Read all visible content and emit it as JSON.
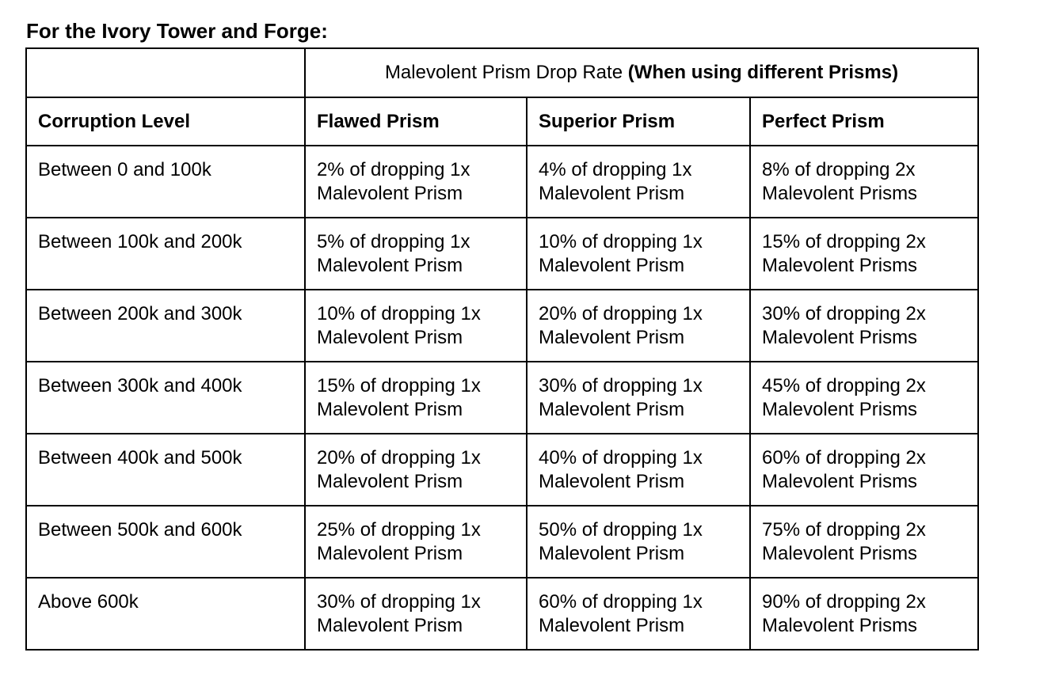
{
  "heading": "For the Ivory Tower and Forge:",
  "table": {
    "group_header": {
      "normal": "Malevolent Prism Drop Rate ",
      "bold": "(When using different Prisms)"
    },
    "columns": [
      "Corruption Level",
      "Flawed Prism",
      "Superior Prism",
      "Perfect Prism"
    ],
    "rows": [
      {
        "level": "Between 0 and 100k",
        "flawed": [
          "2% of dropping 1x",
          "Malevolent Prism"
        ],
        "superior": [
          "4% of dropping 1x",
          "Malevolent Prism"
        ],
        "perfect": [
          "8% of dropping 2x",
          "Malevolent Prisms"
        ]
      },
      {
        "level": "Between 100k and 200k",
        "flawed": [
          "5% of dropping 1x",
          "Malevolent Prism"
        ],
        "superior": [
          "10% of dropping 1x",
          "Malevolent Prism"
        ],
        "perfect": [
          "15% of dropping 2x",
          "Malevolent Prisms"
        ]
      },
      {
        "level": "Between 200k and 300k",
        "flawed": [
          "10% of dropping 1x",
          "Malevolent Prism"
        ],
        "superior": [
          "20% of dropping 1x",
          "Malevolent Prism"
        ],
        "perfect": [
          "30% of dropping 2x",
          "Malevolent Prisms"
        ]
      },
      {
        "level": "Between 300k and 400k",
        "flawed": [
          "15% of dropping 1x",
          "Malevolent Prism"
        ],
        "superior": [
          "30% of dropping 1x",
          "Malevolent Prism"
        ],
        "perfect": [
          "45% of dropping 2x",
          "Malevolent Prisms"
        ]
      },
      {
        "level": "Between 400k and 500k",
        "flawed": [
          "20% of dropping 1x",
          "Malevolent Prism"
        ],
        "superior": [
          "40% of dropping 1x",
          "Malevolent Prism"
        ],
        "perfect": [
          "60% of dropping 2x",
          "Malevolent Prisms"
        ]
      },
      {
        "level": "Between 500k and 600k",
        "flawed": [
          "25% of dropping 1x",
          "Malevolent Prism"
        ],
        "superior": [
          "50% of dropping 1x",
          "Malevolent Prism"
        ],
        "perfect": [
          "75% of dropping 2x",
          "Malevolent Prisms"
        ]
      },
      {
        "level": "Above 600k",
        "flawed": [
          "30% of dropping 1x",
          "Malevolent Prism"
        ],
        "superior": [
          "60% of dropping 1x",
          "Malevolent Prism"
        ],
        "perfect": [
          "90% of dropping 2x",
          "Malevolent Prisms"
        ]
      }
    ]
  }
}
